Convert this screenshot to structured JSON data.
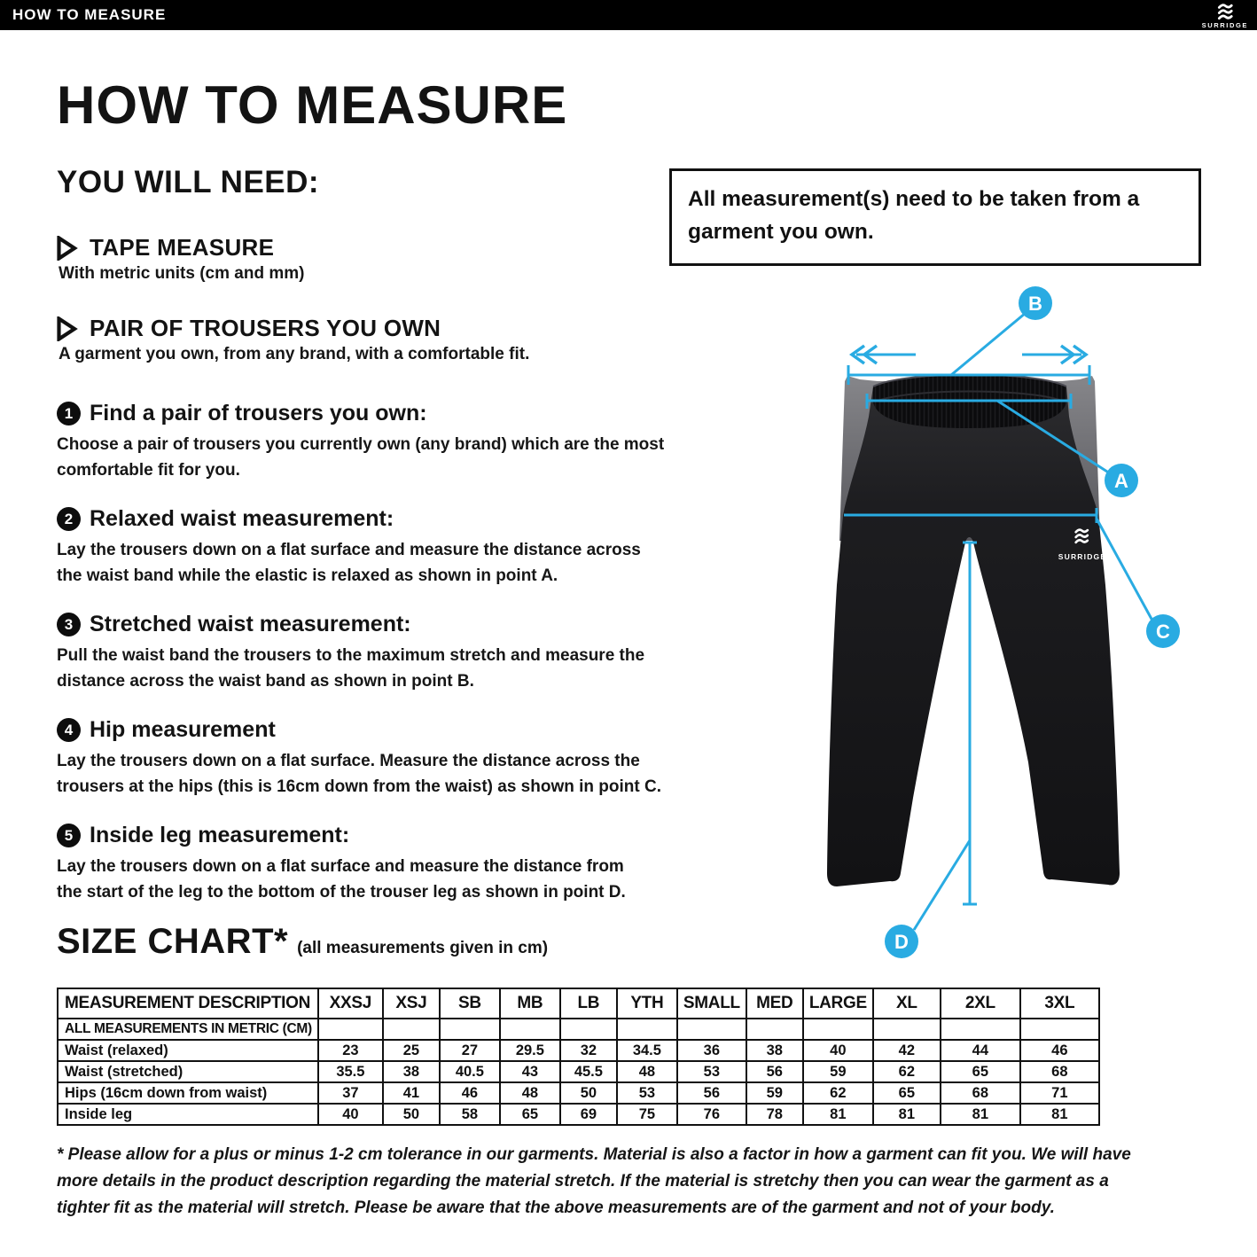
{
  "header": {
    "bar_title": "HOW TO MEASURE",
    "logo_text": "SURRIDGE"
  },
  "page_title": "HOW TO MEASURE",
  "you_will_need": {
    "heading": "YOU WILL NEED:",
    "items": [
      {
        "title": "TAPE MEASURE",
        "desc": "With metric units (cm and mm)"
      },
      {
        "title": "PAIR OF TROUSERS YOU OWN",
        "desc": "A garment you own, from any brand, with a comfortable fit."
      }
    ]
  },
  "notice": "All measurement(s) need to be taken from a\ngarment you own.",
  "steps": [
    {
      "num": "1",
      "title": "Find a pair of trousers you own:",
      "body": "Choose a pair of trousers you currently own (any brand) which are the most\ncomfortable fit for you."
    },
    {
      "num": "2",
      "title": "Relaxed waist measurement:",
      "body": "Lay the trousers down on a flat surface and measure the distance across\nthe waist band while the elastic is relaxed as shown in point A."
    },
    {
      "num": "3",
      "title": "Stretched waist measurement:",
      "body": "Pull the waist band the trousers to the maximum stretch and measure the\ndistance across the waist band as shown in point B."
    },
    {
      "num": "4",
      "title": "Hip measurement",
      "body": "Lay the trousers down on a flat surface. Measure the distance across the\ntrousers at the hips (this is 16cm down from the waist) as shown in point C."
    },
    {
      "num": "5",
      "title": "Inside leg measurement:",
      "body": "Lay the trousers down on a flat surface and measure the distance from\nthe start of the leg to the bottom of the trouser leg as shown in point D."
    }
  ],
  "figure": {
    "points": {
      "a": "A",
      "b": "B",
      "c": "C",
      "d": "D"
    },
    "logo_text": "SURRIDGE",
    "accent_color": "#29ABE2"
  },
  "size_chart": {
    "title": "SIZE CHART*",
    "subtitle": "(all measurements given in cm)",
    "columns": [
      "MEASUREMENT DESCRIPTION",
      "XXSJ",
      "XSJ",
      "SB",
      "MB",
      "LB",
      "YTH",
      "SMALL",
      "MED",
      "LARGE",
      "XL",
      "2XL",
      "3XL"
    ],
    "note_row": "ALL MEASUREMENTS IN METRIC (CM)",
    "rows": [
      {
        "label": "Waist (relaxed)",
        "values": [
          "23",
          "25",
          "27",
          "29.5",
          "32",
          "34.5",
          "36",
          "38",
          "40",
          "42",
          "44",
          "46"
        ]
      },
      {
        "label": "Waist (stretched)",
        "values": [
          "35.5",
          "38",
          "40.5",
          "43",
          "45.5",
          "48",
          "53",
          "56",
          "59",
          "62",
          "65",
          "68"
        ]
      },
      {
        "label": "Hips (16cm down from waist)",
        "values": [
          "37",
          "41",
          "46",
          "48",
          "50",
          "53",
          "56",
          "59",
          "62",
          "65",
          "68",
          "71"
        ]
      },
      {
        "label": "Inside leg",
        "values": [
          "40",
          "50",
          "58",
          "65",
          "69",
          "75",
          "76",
          "78",
          "81",
          "81",
          "81",
          "81"
        ]
      }
    ]
  },
  "footnote": "* Please allow for a plus or minus 1-2 cm tolerance in our garments. Material is also a factor in how a garment can fit you. We will have\nmore details in the product description regarding the material stretch.  If the material is stretchy then you can wear the garment as a\ntighter fit as the material will stretch.  Please be aware that the above measurements are of the garment and not of your body."
}
